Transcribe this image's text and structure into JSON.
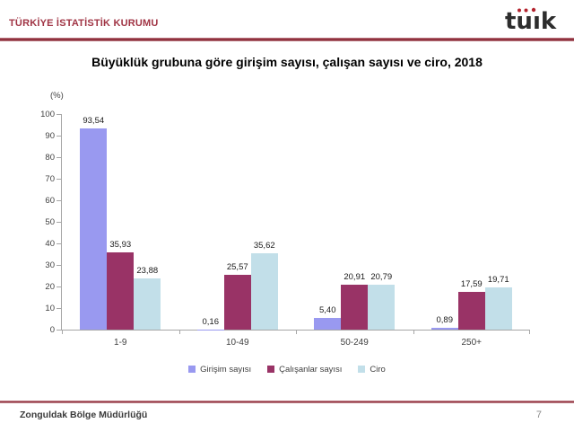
{
  "header": {
    "org_title": "TÜRKİYE İSTATİSTİK KURUMU",
    "logo_name": "tuik-logo"
  },
  "colors": {
    "accent_red": "#a03444",
    "axis_gray": "#a6a6a6",
    "logo_dark": "#2d2d2d",
    "logo_red": "#b4232e"
  },
  "chart": {
    "title": "Büyüklük grubuna göre girişim sayısı, çalışan sayısı ve ciro, 2018",
    "unit_label": "(%)"
  },
  "chart_data": {
    "type": "bar",
    "title": "Büyüklük grubuna göre girişim sayısı, çalışan sayısı ve ciro, 2018",
    "xlabel": "",
    "ylabel": "(%)",
    "ylim": [
      0,
      100
    ],
    "ytick_step": 10,
    "grid": false,
    "legend_position": "bottom",
    "categories": [
      "1-9",
      "10-49",
      "50-249",
      "250+"
    ],
    "series": [
      {
        "name": "Girişim sayısı",
        "color": "#9999f0",
        "values": [
          93.54,
          0.16,
          5.4,
          0.89
        ],
        "labels": [
          "93,54",
          "0,16",
          "5,40",
          "0,89"
        ]
      },
      {
        "name": "Çalışanlar sayısı",
        "color": "#993366",
        "values": [
          35.93,
          25.57,
          20.91,
          17.59
        ],
        "labels": [
          "35,93",
          "25,57",
          "20,91",
          "17,59"
        ]
      },
      {
        "name": "Ciro",
        "color": "#c2dfe9",
        "values": [
          23.88,
          35.62,
          20.79,
          19.71
        ],
        "labels": [
          "23,88",
          "35,62",
          "20,79",
          "19,71"
        ]
      }
    ]
  },
  "footer": {
    "department": "Zonguldak Bölge Müdürlüğü",
    "page_number": "7"
  }
}
